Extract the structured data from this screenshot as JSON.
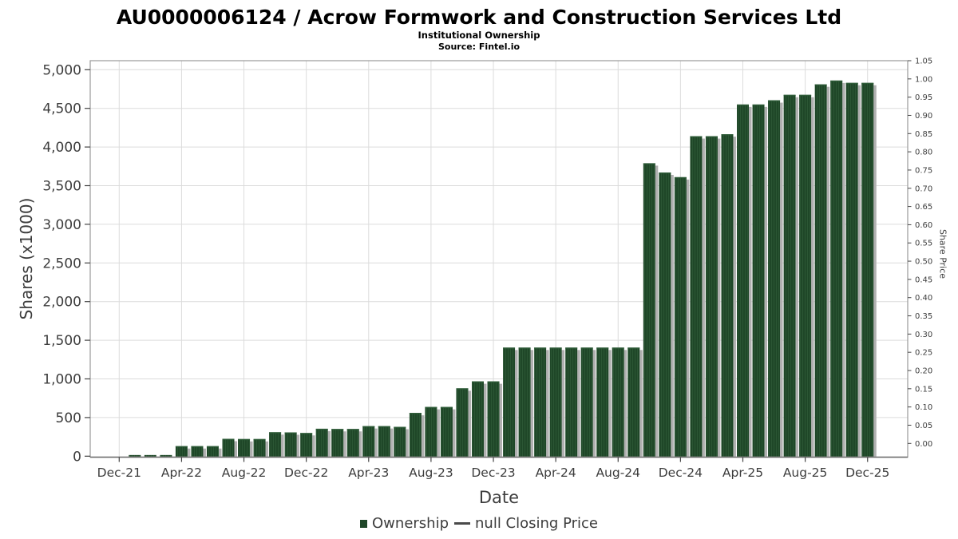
{
  "header": {
    "title": "AU0000006124 / Acrow Formwork and Construction Services Ltd",
    "subtitle": "Institutional Ownership",
    "source": "Source: Fintel.io"
  },
  "chart_data": {
    "type": "bar",
    "title": "AU0000006124 / Acrow Formwork and Construction Services Ltd",
    "subtitle": "Institutional Ownership",
    "source": "Source: Fintel.io",
    "xlabel": "Date",
    "ylabel": "Shares (x1000)",
    "y2label": "Share Price",
    "ylim": [
      0,
      5000
    ],
    "ytick_step": 500,
    "y2lim": [
      0.0,
      1.05
    ],
    "y2tick_step": 0.05,
    "grid": true,
    "legend_position": "bottom-center",
    "xtick_labels": [
      "Dec-21",
      "Apr-22",
      "Aug-22",
      "Dec-22",
      "Apr-23",
      "Aug-23",
      "Dec-23",
      "Apr-24",
      "Aug-24",
      "Dec-24",
      "Apr-25",
      "Aug-25",
      "Dec-25"
    ],
    "categories": [
      "Jan-22",
      "Feb-22",
      "Mar-22",
      "Apr-22",
      "May-22",
      "Jun-22",
      "Jul-22",
      "Aug-22",
      "Sep-22",
      "Oct-22",
      "Nov-22",
      "Dec-22",
      "Jan-23",
      "Feb-23",
      "Mar-23",
      "Apr-23",
      "May-23",
      "Jun-23",
      "Jul-23",
      "Aug-23",
      "Sep-23",
      "Oct-23",
      "Nov-23",
      "Dec-23",
      "Jan-24",
      "Feb-24",
      "Mar-24",
      "Apr-24",
      "May-24",
      "Jun-24",
      "Jul-24",
      "Aug-24",
      "Sep-24",
      "Oct-24",
      "Nov-24",
      "Dec-24",
      "Jan-25",
      "Feb-25",
      "Mar-25",
      "Apr-25",
      "May-25",
      "Jun-25",
      "Jul-25",
      "Aug-25",
      "Sep-25",
      "Oct-25",
      "Nov-25",
      "Dec-25"
    ],
    "series": [
      {
        "name": "Ownership",
        "type": "bar",
        "axis": "left",
        "values": [
          15,
          15,
          15,
          130,
          130,
          130,
          225,
          222,
          222,
          310,
          308,
          300,
          355,
          352,
          352,
          389,
          389,
          380,
          560,
          637,
          637,
          878,
          968,
          968,
          1405,
          1405,
          1405,
          1405,
          1405,
          1405,
          1405,
          1405,
          1405,
          3790,
          3670,
          3610,
          4140,
          4140,
          4165,
          4550,
          4550,
          4605,
          4675,
          4675,
          4810,
          4860,
          4830,
          4830
        ]
      }
    ],
    "legend": [
      {
        "label": "Ownership",
        "marker": "square"
      },
      {
        "label": "null Closing Price",
        "marker": "line"
      }
    ],
    "colors": {
      "bar_fill": "#1f4728",
      "bar_stripe": "#2b5634",
      "bar_top_edge": "#2f5d39",
      "bar_shadow": "#b0b0b0",
      "grid": "#dcdcdc",
      "frame": "#999999",
      "axis_line": "#6b6b6b",
      "tick_mark": "#444444",
      "tick_text": "#3d3d3d",
      "legend_line": "#4a4a4a"
    }
  }
}
